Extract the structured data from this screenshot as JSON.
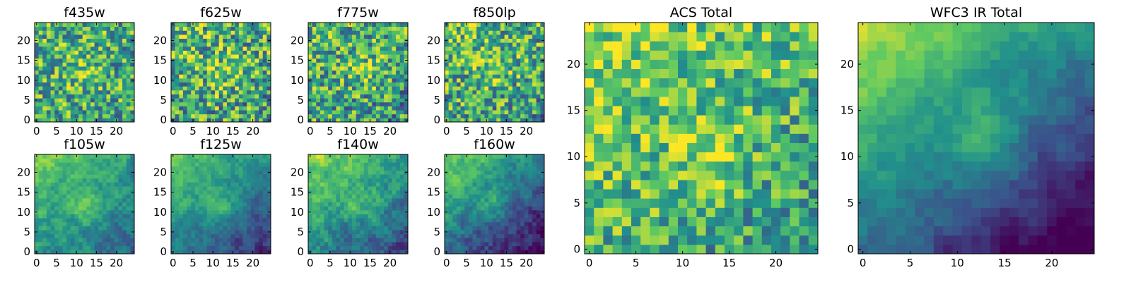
{
  "figure": {
    "colormap": "viridis",
    "colors": [
      "#440154",
      "#3b528b",
      "#21918c",
      "#5ec962",
      "#fde725"
    ]
  },
  "chart_data": [
    {
      "type": "heatmap",
      "title": "f435w",
      "grid_size": 25,
      "xlim": [
        -0.5,
        24.5
      ],
      "ylim": [
        -0.5,
        24.5
      ],
      "xticks": [
        0,
        5,
        10,
        15,
        20
      ],
      "yticks": [
        0,
        5,
        10,
        15,
        20
      ],
      "tick_labels_x": [
        "0",
        "5",
        "10",
        "15",
        "20"
      ],
      "tick_labels_y": [
        "0",
        "5",
        "10",
        "15",
        "20"
      ],
      "description_level": "noisy",
      "mean": 0.62,
      "noise": 0.35,
      "hotspot": [
        12,
        12
      ],
      "gradient": 0.05,
      "seed": 11
    },
    {
      "type": "heatmap",
      "title": "f625w",
      "grid_size": 25,
      "xlim": [
        -0.5,
        24.5
      ],
      "ylim": [
        -0.5,
        24.5
      ],
      "xticks": [
        0,
        5,
        10,
        15,
        20
      ],
      "yticks": [
        0,
        5,
        10,
        15,
        20
      ],
      "tick_labels_x": [
        "0",
        "5",
        "10",
        "15",
        "20"
      ],
      "tick_labels_y": [
        "0",
        "5",
        "10",
        "15",
        "20"
      ],
      "description_level": "noisy",
      "mean": 0.62,
      "noise": 0.38,
      "hotspot": [
        13,
        12
      ],
      "gradient": 0.06,
      "seed": 23
    },
    {
      "type": "heatmap",
      "title": "f775w",
      "grid_size": 25,
      "xlim": [
        -0.5,
        24.5
      ],
      "ylim": [
        -0.5,
        24.5
      ],
      "xticks": [
        0,
        5,
        10,
        15,
        20
      ],
      "yticks": [
        0,
        5,
        10,
        15,
        20
      ],
      "tick_labels_x": [
        "0",
        "5",
        "10",
        "15",
        "20"
      ],
      "tick_labels_y": [
        "0",
        "5",
        "10",
        "15",
        "20"
      ],
      "description_level": "noisy",
      "mean": 0.6,
      "noise": 0.36,
      "hotspot": [
        14,
        12
      ],
      "gradient": 0.08,
      "seed": 37
    },
    {
      "type": "heatmap",
      "title": "f850lp",
      "grid_size": 25,
      "xlim": [
        -0.5,
        24.5
      ],
      "ylim": [
        -0.5,
        24.5
      ],
      "xticks": [
        0,
        5,
        10,
        15,
        20
      ],
      "yticks": [
        0,
        5,
        10,
        15,
        20
      ],
      "tick_labels_x": [
        "0",
        "5",
        "10",
        "15",
        "20"
      ],
      "tick_labels_y": [
        "0",
        "5",
        "10",
        "15",
        "20"
      ],
      "description_level": "noisy",
      "mean": 0.62,
      "noise": 0.36,
      "hotspot": [
        13,
        13
      ],
      "gradient": 0.1,
      "seed": 41
    },
    {
      "type": "heatmap",
      "title": "f105w",
      "grid_size": 25,
      "xlim": [
        -0.5,
        24.5
      ],
      "ylim": [
        -0.5,
        24.5
      ],
      "xticks": [
        0,
        5,
        10,
        15,
        20
      ],
      "yticks": [
        0,
        5,
        10,
        15,
        20
      ],
      "tick_labels_x": [
        "0",
        "5",
        "10",
        "15",
        "20"
      ],
      "tick_labels_y": [
        "0",
        "5",
        "10",
        "15",
        "20"
      ],
      "description_level": "smooth",
      "mean": 0.55,
      "noise": 0.22,
      "hotspot": [
        13,
        11
      ],
      "gradient": 0.25,
      "seed": 53
    },
    {
      "type": "heatmap",
      "title": "f125w",
      "grid_size": 25,
      "xlim": [
        -0.5,
        24.5
      ],
      "ylim": [
        -0.5,
        24.5
      ],
      "xticks": [
        0,
        5,
        10,
        15,
        20
      ],
      "yticks": [
        0,
        5,
        10,
        15,
        20
      ],
      "tick_labels_x": [
        "0",
        "5",
        "10",
        "15",
        "20"
      ],
      "tick_labels_y": [
        "0",
        "5",
        "10",
        "15",
        "20"
      ],
      "description_level": "smooth",
      "mean": 0.45,
      "noise": 0.18,
      "hotspot": [
        12,
        12
      ],
      "gradient": 0.35,
      "seed": 67
    },
    {
      "type": "heatmap",
      "title": "f140w",
      "grid_size": 25,
      "xlim": [
        -0.5,
        24.5
      ],
      "ylim": [
        -0.5,
        24.5
      ],
      "xticks": [
        0,
        5,
        10,
        15,
        20
      ],
      "yticks": [
        0,
        5,
        10,
        15,
        20
      ],
      "tick_labels_x": [
        "0",
        "5",
        "10",
        "15",
        "20"
      ],
      "tick_labels_y": [
        "0",
        "5",
        "10",
        "15",
        "20"
      ],
      "description_level": "smooth",
      "mean": 0.52,
      "noise": 0.24,
      "hotspot": [
        13,
        12
      ],
      "gradient": 0.35,
      "seed": 79
    },
    {
      "type": "heatmap",
      "title": "f160w",
      "grid_size": 25,
      "xlim": [
        -0.5,
        24.5
      ],
      "ylim": [
        -0.5,
        24.5
      ],
      "xticks": [
        0,
        5,
        10,
        15,
        20
      ],
      "yticks": [
        0,
        5,
        10,
        15,
        20
      ],
      "tick_labels_x": [
        "0",
        "5",
        "10",
        "15",
        "20"
      ],
      "tick_labels_y": [
        "0",
        "5",
        "10",
        "15",
        "20"
      ],
      "description_level": "smooth",
      "mean": 0.38,
      "noise": 0.22,
      "hotspot": [
        12,
        12
      ],
      "gradient": 0.45,
      "seed": 83
    },
    {
      "type": "heatmap",
      "title": "ACS Total",
      "grid_size": 25,
      "xlim": [
        -0.5,
        24.5
      ],
      "ylim": [
        -0.5,
        24.5
      ],
      "xticks": [
        0,
        5,
        10,
        15,
        20
      ],
      "yticks": [
        0,
        5,
        10,
        15,
        20
      ],
      "tick_labels_x": [
        "0",
        "5",
        "10",
        "15",
        "20"
      ],
      "tick_labels_y": [
        "0",
        "5",
        "10",
        "15",
        "20"
      ],
      "description_level": "noisy",
      "mean": 0.68,
      "noise": 0.28,
      "hotspot": [
        13,
        10
      ],
      "gradient": 0.18,
      "seed": 97
    },
    {
      "type": "heatmap",
      "title": "WFC3 IR Total",
      "grid_size": 25,
      "xlim": [
        -0.5,
        24.5
      ],
      "ylim": [
        -0.5,
        24.5
      ],
      "xticks": [
        0,
        5,
        10,
        15,
        20
      ],
      "yticks": [
        0,
        5,
        10,
        15,
        20
      ],
      "tick_labels_x": [
        "0",
        "5",
        "10",
        "15",
        "20"
      ],
      "tick_labels_y": [
        "0",
        "5",
        "10",
        "15",
        "20"
      ],
      "description_level": "smooth",
      "mean": 0.42,
      "noise": 0.14,
      "hotspot": [
        13,
        12
      ],
      "gradient": 0.55,
      "seed": 101
    }
  ]
}
